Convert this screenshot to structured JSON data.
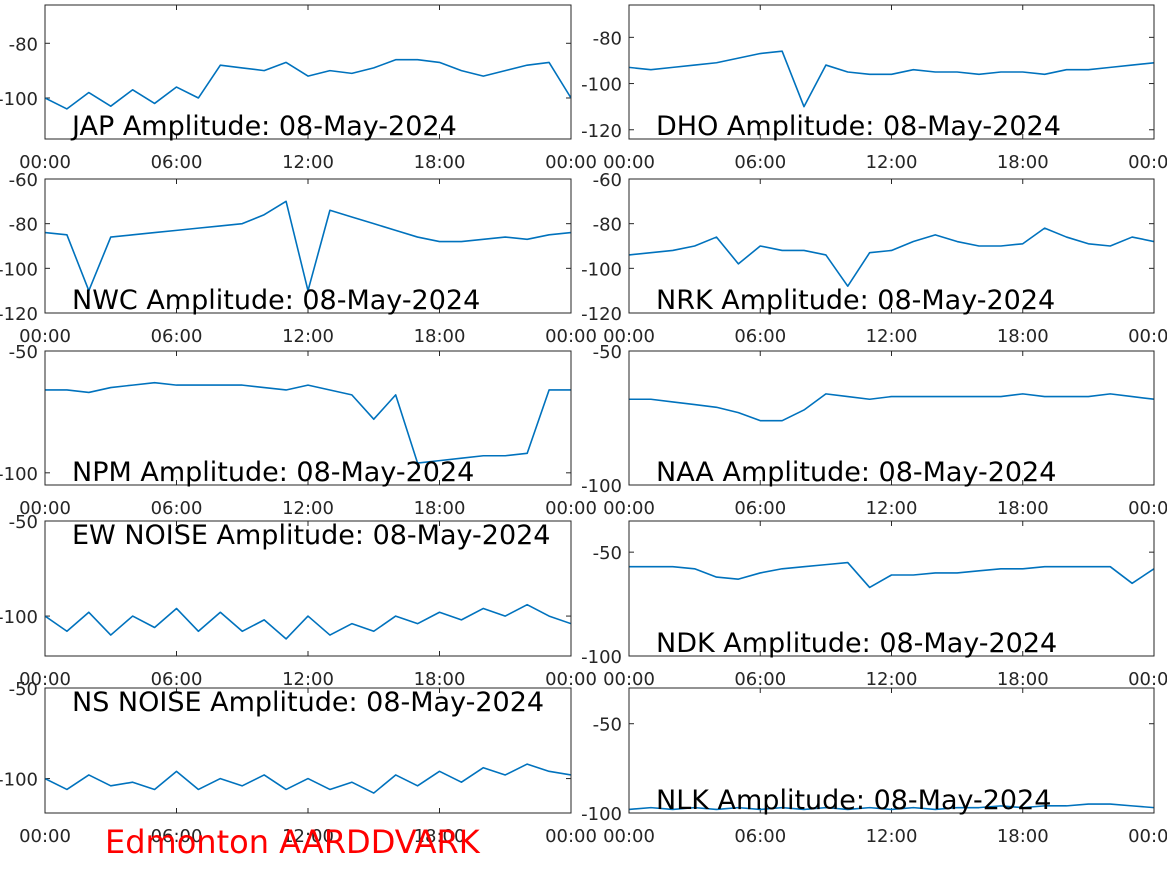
{
  "chart_data": [
    {
      "type": "line",
      "title": "JAP Amplitude: 08-May-2024",
      "x": [
        0,
        1,
        2,
        3,
        4,
        5,
        6,
        7,
        8,
        9,
        10,
        11,
        12,
        13,
        14,
        15,
        16,
        17,
        18,
        19,
        20,
        21,
        22,
        23,
        24
      ],
      "series": [
        {
          "color": "#0072bd",
          "values": [
            -100,
            -104,
            -98,
            -103,
            -97,
            -102,
            -96,
            -100,
            -88,
            -89,
            -90,
            -87,
            -92,
            -90,
            -91,
            -89,
            -86,
            -86,
            -87,
            -90,
            -92,
            -90,
            -88,
            -87,
            -100
          ]
        }
      ],
      "xlim": [
        0,
        24
      ],
      "xticks": [
        {
          "value": 0,
          "label": "00:00"
        },
        {
          "value": 6,
          "label": "06:00"
        },
        {
          "value": 12,
          "label": "12:00"
        },
        {
          "value": 18,
          "label": "18:00"
        },
        {
          "value": 24,
          "label": "00:00"
        }
      ],
      "ylim": [
        -115,
        -66
      ],
      "yticks": [
        -100,
        -80
      ]
    },
    {
      "type": "line",
      "title": "DHO Amplitude: 08-May-2024",
      "x": [
        0,
        1,
        2,
        3,
        4,
        5,
        6,
        7,
        8,
        9,
        10,
        11,
        12,
        13,
        14,
        15,
        16,
        17,
        18,
        19,
        20,
        21,
        22,
        23,
        24
      ],
      "series": [
        {
          "color": "#0072bd",
          "values": [
            -93,
            -94,
            -93,
            -92,
            -91,
            -89,
            -87,
            -86,
            -110,
            -92,
            -95,
            -96,
            -96,
            -94,
            -95,
            -95,
            -96,
            -95,
            -95,
            -96,
            -94,
            -94,
            -93,
            -92,
            -91
          ]
        }
      ],
      "xlim": [
        0,
        24
      ],
      "xticks": [
        {
          "value": 0,
          "label": "00:00"
        },
        {
          "value": 6,
          "label": "06:00"
        },
        {
          "value": 12,
          "label": "12:00"
        },
        {
          "value": 18,
          "label": "18:00"
        },
        {
          "value": 24,
          "label": "00:00"
        }
      ],
      "ylim": [
        -124,
        -66
      ],
      "yticks": [
        -120,
        -100,
        -80
      ]
    },
    {
      "type": "line",
      "title": "NWC Amplitude: 08-May-2024",
      "x": [
        0,
        1,
        2,
        3,
        4,
        5,
        6,
        7,
        8,
        9,
        10,
        11,
        12,
        13,
        14,
        15,
        16,
        17,
        18,
        19,
        20,
        21,
        22,
        23,
        24
      ],
      "series": [
        {
          "color": "#0072bd",
          "values": [
            -84,
            -85,
            -110,
            -86,
            -85,
            -84,
            -83,
            -82,
            -81,
            -80,
            -76,
            -70,
            -110,
            -74,
            -77,
            -80,
            -83,
            -86,
            -88,
            -88,
            -87,
            -86,
            -87,
            -85,
            -84
          ]
        }
      ],
      "xlim": [
        0,
        24
      ],
      "xticks": [
        {
          "value": 0,
          "label": "00:00"
        },
        {
          "value": 6,
          "label": "06:00"
        },
        {
          "value": 12,
          "label": "12:00"
        },
        {
          "value": 18,
          "label": "18:00"
        },
        {
          "value": 24,
          "label": "00:00"
        }
      ],
      "ylim": [
        -120,
        -60
      ],
      "yticks": [
        -120,
        -100,
        -80,
        -60
      ]
    },
    {
      "type": "line",
      "title": "NRK Amplitude: 08-May-2024",
      "x": [
        0,
        1,
        2,
        3,
        4,
        5,
        6,
        7,
        8,
        9,
        10,
        11,
        12,
        13,
        14,
        15,
        16,
        17,
        18,
        19,
        20,
        21,
        22,
        23,
        24
      ],
      "series": [
        {
          "color": "#0072bd",
          "values": [
            -94,
            -93,
            -92,
            -90,
            -86,
            -98,
            -90,
            -92,
            -92,
            -94,
            -108,
            -93,
            -92,
            -88,
            -85,
            -88,
            -90,
            -90,
            -89,
            -82,
            -86,
            -89,
            -90,
            -86,
            -88
          ]
        }
      ],
      "xlim": [
        0,
        24
      ],
      "xticks": [
        {
          "value": 0,
          "label": "00:00"
        },
        {
          "value": 6,
          "label": "06:00"
        },
        {
          "value": 12,
          "label": "12:00"
        },
        {
          "value": 18,
          "label": "18:00"
        },
        {
          "value": 24,
          "label": "00:00"
        }
      ],
      "ylim": [
        -120,
        -60
      ],
      "yticks": [
        -120,
        -100,
        -80,
        -60
      ]
    },
    {
      "type": "line",
      "title": "NPM Amplitude: 08-May-2024",
      "x": [
        0,
        1,
        2,
        3,
        4,
        5,
        6,
        7,
        8,
        9,
        10,
        11,
        12,
        13,
        14,
        15,
        16,
        17,
        18,
        19,
        20,
        21,
        22,
        23,
        24
      ],
      "series": [
        {
          "color": "#0072bd",
          "values": [
            -66,
            -66,
            -67,
            -65,
            -64,
            -63,
            -64,
            -64,
            -64,
            -64,
            -65,
            -66,
            -64,
            -66,
            -68,
            -78,
            -68,
            -96,
            -95,
            -94,
            -93,
            -93,
            -92,
            -66,
            -66
          ]
        }
      ],
      "xlim": [
        0,
        24
      ],
      "xticks": [
        {
          "value": 0,
          "label": "00:00"
        },
        {
          "value": 6,
          "label": "06:00"
        },
        {
          "value": 12,
          "label": "12:00"
        },
        {
          "value": 18,
          "label": "18:00"
        },
        {
          "value": 24,
          "label": "00:00"
        }
      ],
      "ylim": [
        -105,
        -50
      ],
      "yticks": [
        -100,
        -50
      ]
    },
    {
      "type": "line",
      "title": "NAA Amplitude: 08-May-2024",
      "x": [
        0,
        1,
        2,
        3,
        4,
        5,
        6,
        7,
        8,
        9,
        10,
        11,
        12,
        13,
        14,
        15,
        16,
        17,
        18,
        19,
        20,
        21,
        22,
        23,
        24
      ],
      "series": [
        {
          "color": "#0072bd",
          "values": [
            -68,
            -68,
            -69,
            -70,
            -71,
            -73,
            -76,
            -76,
            -72,
            -66,
            -67,
            -68,
            -67,
            -67,
            -67,
            -67,
            -67,
            -67,
            -66,
            -67,
            -67,
            -67,
            -66,
            -67,
            -68
          ]
        }
      ],
      "xlim": [
        0,
        24
      ],
      "xticks": [
        {
          "value": 0,
          "label": "00:00"
        },
        {
          "value": 6,
          "label": "06:00"
        },
        {
          "value": 12,
          "label": "12:00"
        },
        {
          "value": 18,
          "label": "18:00"
        },
        {
          "value": 24,
          "label": "00:00"
        }
      ],
      "ylim": [
        -100,
        -50
      ],
      "yticks": [
        -100,
        -50
      ]
    },
    {
      "type": "line",
      "title": "EW NOISE Amplitude: 08-May-2024",
      "x": [
        0,
        1,
        2,
        3,
        4,
        5,
        6,
        7,
        8,
        9,
        10,
        11,
        12,
        13,
        14,
        15,
        16,
        17,
        18,
        19,
        20,
        21,
        22,
        23,
        24
      ],
      "series": [
        {
          "color": "#0072bd",
          "values": [
            -100,
            -108,
            -98,
            -110,
            -100,
            -106,
            -96,
            -108,
            -98,
            -108,
            -102,
            -112,
            -100,
            -110,
            -104,
            -108,
            -100,
            -104,
            -98,
            -102,
            -96,
            -100,
            -94,
            -100,
            -104
          ]
        }
      ],
      "xlim": [
        0,
        24
      ],
      "xticks": [
        {
          "value": 0,
          "label": "00:00"
        },
        {
          "value": 6,
          "label": "06:00"
        },
        {
          "value": 12,
          "label": "12:00"
        },
        {
          "value": 18,
          "label": "18:00"
        },
        {
          "value": 24,
          "label": "00:00"
        }
      ],
      "ylim": [
        -121,
        -50
      ],
      "yticks": [
        -100,
        -50
      ]
    },
    {
      "type": "line",
      "title": "NDK Amplitude: 08-May-2024",
      "x": [
        0,
        1,
        2,
        3,
        4,
        5,
        6,
        7,
        8,
        9,
        10,
        11,
        12,
        13,
        14,
        15,
        16,
        17,
        18,
        19,
        20,
        21,
        22,
        23,
        24
      ],
      "series": [
        {
          "color": "#0072bd",
          "values": [
            -57,
            -57,
            -57,
            -58,
            -62,
            -63,
            -60,
            -58,
            -57,
            -56,
            -55,
            -67,
            -61,
            -61,
            -60,
            -60,
            -59,
            -58,
            -58,
            -57,
            -57,
            -57,
            -57,
            -65,
            -58
          ]
        }
      ],
      "xlim": [
        0,
        24
      ],
      "xticks": [
        {
          "value": 0,
          "label": "00:00"
        },
        {
          "value": 6,
          "label": "06:00"
        },
        {
          "value": 12,
          "label": "12:00"
        },
        {
          "value": 18,
          "label": "18:00"
        },
        {
          "value": 24,
          "label": "00:00"
        }
      ],
      "ylim": [
        -100,
        -35
      ],
      "yticks": [
        -100,
        -50
      ]
    },
    {
      "type": "line",
      "title": "NS NOISE Amplitude: 08-May-2024",
      "x": [
        0,
        1,
        2,
        3,
        4,
        5,
        6,
        7,
        8,
        9,
        10,
        11,
        12,
        13,
        14,
        15,
        16,
        17,
        18,
        19,
        20,
        21,
        22,
        23,
        24
      ],
      "series": [
        {
          "color": "#0072bd",
          "values": [
            -100,
            -106,
            -98,
            -104,
            -102,
            -106,
            -96,
            -106,
            -100,
            -104,
            -98,
            -106,
            -100,
            -106,
            -102,
            -108,
            -98,
            -104,
            -96,
            -102,
            -94,
            -98,
            -92,
            -96,
            -98
          ]
        }
      ],
      "xlim": [
        0,
        24
      ],
      "xticks": [
        {
          "value": 0,
          "label": "00:00"
        },
        {
          "value": 6,
          "label": "06:00"
        },
        {
          "value": 12,
          "label": "12:00"
        },
        {
          "value": 18,
          "label": "18:00"
        },
        {
          "value": 24,
          "label": "00:00"
        }
      ],
      "ylim": [
        -119,
        -50
      ],
      "yticks": [
        -100,
        -50
      ]
    },
    {
      "type": "line",
      "title": "NLK Amplitude: 08-May-2024",
      "x": [
        0,
        1,
        2,
        3,
        4,
        5,
        6,
        7,
        8,
        9,
        10,
        11,
        12,
        13,
        14,
        15,
        16,
        17,
        18,
        19,
        20,
        21,
        22,
        23,
        24
      ],
      "series": [
        {
          "color": "#0072bd",
          "values": [
            -98,
            -97,
            -98,
            -97,
            -98,
            -97,
            -98,
            -97,
            -98,
            -97,
            -98,
            -97,
            -98,
            -97,
            -98,
            -97,
            -97,
            -96,
            -97,
            -96,
            -96,
            -95,
            -95,
            -96,
            -97
          ]
        }
      ],
      "xlim": [
        0,
        24
      ],
      "xticks": [
        {
          "value": 0,
          "label": "00:00"
        },
        {
          "value": 6,
          "label": "06:00"
        },
        {
          "value": 12,
          "label": "12:00"
        },
        {
          "value": 18,
          "label": "18:00"
        },
        {
          "value": 24,
          "label": "00:00"
        }
      ],
      "ylim": [
        -100,
        -30
      ],
      "yticks": [
        -100,
        -50
      ]
    }
  ],
  "caption": "Edmonton AARDDVARK"
}
